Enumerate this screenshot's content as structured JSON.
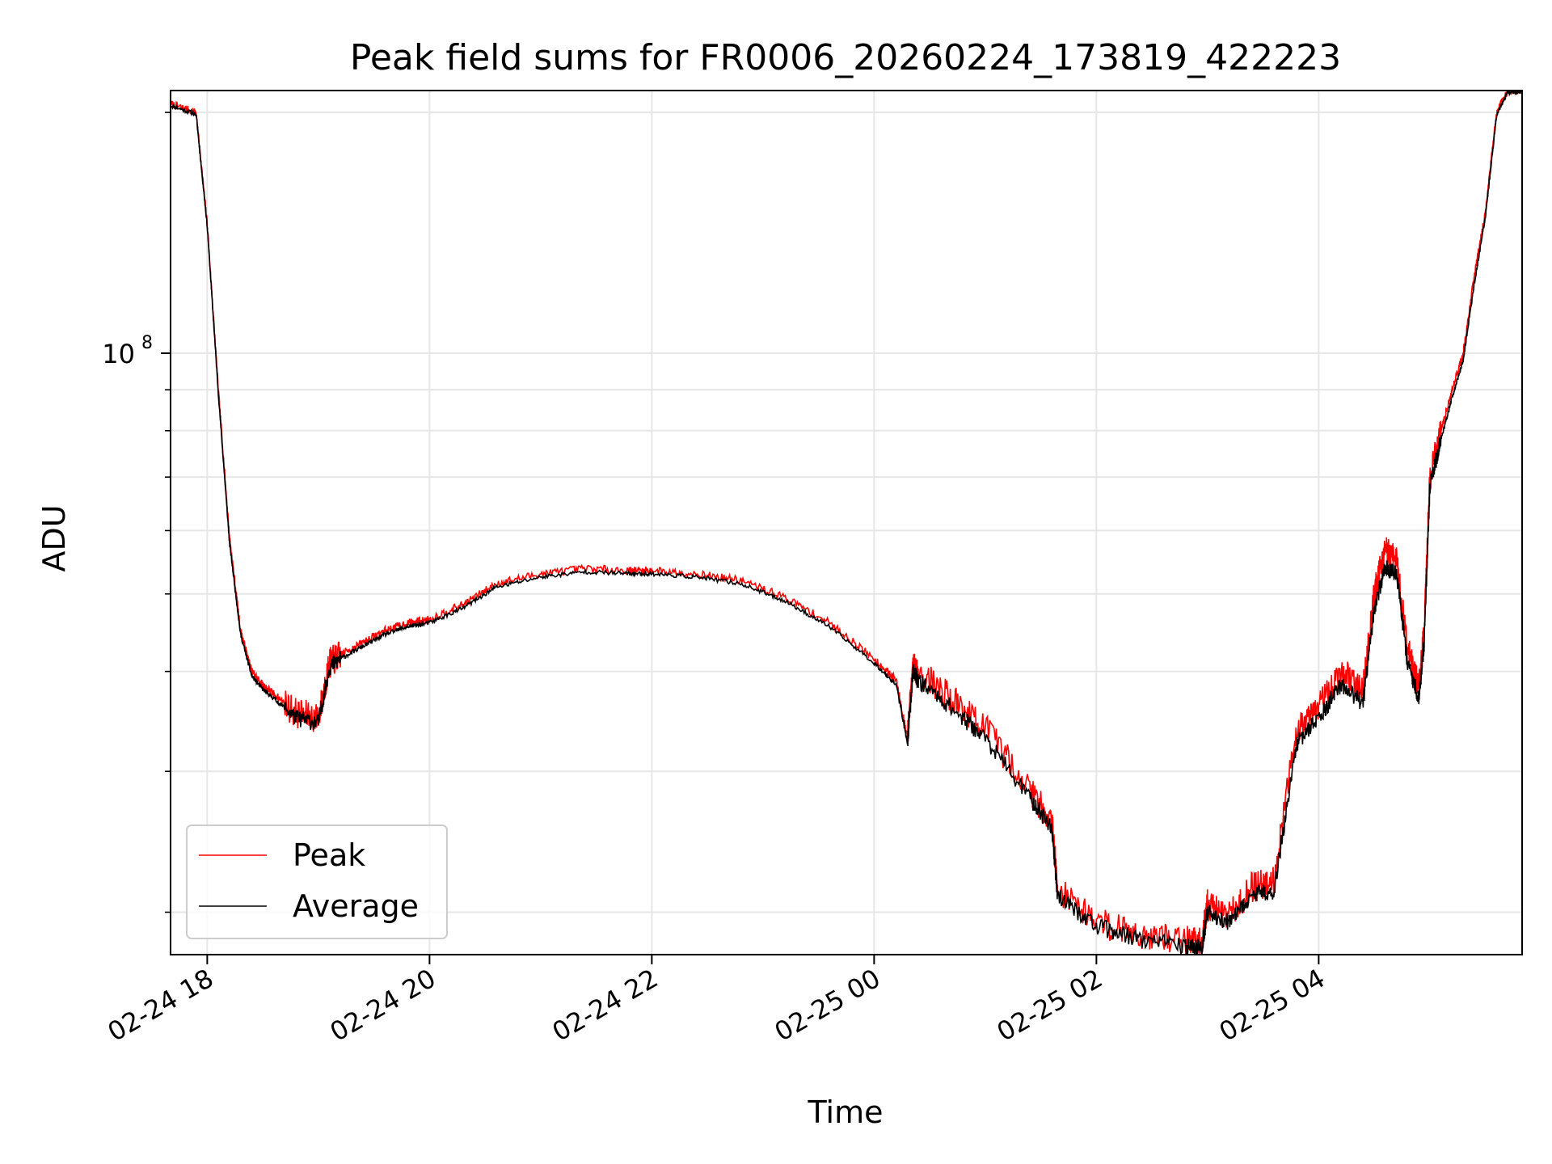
{
  "chart_data": {
    "type": "line",
    "title": "Peak field sums for FR0006_20260224_173819_422223",
    "xlabel": "Time",
    "ylabel": "ADU",
    "yscale": "log",
    "grid": true,
    "legend_position": "lower-left",
    "x_unit": "hours since 2026-02-24 00:00",
    "xlim": [
      17.67,
      29.83
    ],
    "ylim": [
      17700000,
      213000000
    ],
    "x_ticks": [
      {
        "value": 18,
        "label": "02-24 18"
      },
      {
        "value": 20,
        "label": "02-24 20"
      },
      {
        "value": 22,
        "label": "02-24 22"
      },
      {
        "value": 24,
        "label": "02-25 00"
      },
      {
        "value": 26,
        "label": "02-25 02"
      },
      {
        "value": 28,
        "label": "02-25 04"
      }
    ],
    "y_ticks": [
      {
        "value": 100000000,
        "base": "10",
        "exp": "8"
      }
    ],
    "y_minor_ticks": [
      20000000,
      30000000,
      40000000,
      50000000,
      60000000,
      70000000,
      80000000,
      90000000,
      200000000
    ],
    "colors": {
      "peak": "#ff0000",
      "average": "#000000",
      "grid": "#e6e6e6"
    },
    "series": [
      {
        "name": "Peak",
        "x": [
          17.67,
          17.9,
          18.0,
          18.1,
          18.2,
          18.3,
          18.4,
          18.5,
          18.6,
          18.8,
          19.0,
          19.1,
          19.2,
          19.4,
          19.6,
          19.8,
          20.0,
          20.3,
          20.6,
          21.0,
          21.4,
          21.8,
          22.0,
          22.4,
          22.8,
          23.2,
          23.6,
          24.0,
          24.2,
          24.3,
          24.35,
          24.4,
          24.7,
          25.0,
          25.4,
          25.6,
          25.65,
          26.0,
          26.4,
          26.8,
          26.95,
          27.0,
          27.2,
          27.4,
          27.6,
          27.8,
          28.0,
          28.2,
          28.4,
          28.5,
          28.6,
          28.7,
          28.8,
          28.9,
          28.95,
          29.0,
          29.1,
          29.2,
          29.3,
          29.4,
          29.5,
          29.6,
          29.7,
          29.83
        ],
        "y": [
          205000000,
          200000000,
          145000000,
          90000000,
          59000000,
          45000000,
          40000000,
          38500000,
          37500000,
          35500000,
          35000000,
          41000000,
          42000000,
          43500000,
          45000000,
          46000000,
          46500000,
          48500000,
          51500000,
          53000000,
          53800000,
          53500000,
          53500000,
          53000000,
          52000000,
          49500000,
          46000000,
          41500000,
          39000000,
          33000000,
          40500000,
          40000000,
          37000000,
          34000000,
          28500000,
          26000000,
          21500000,
          19500000,
          18800000,
          18400000,
          18400000,
          20500000,
          19800000,
          21500000,
          22000000,
          34000000,
          36000000,
          40000000,
          38000000,
          50000000,
          57000000,
          55000000,
          43000000,
          38000000,
          45000000,
          70000000,
          80000000,
          90000000,
          100000000,
          125000000,
          150000000,
          200000000,
          213000000,
          213000000
        ]
      },
      {
        "name": "Average",
        "x": [
          17.67,
          17.9,
          18.0,
          18.1,
          18.2,
          18.3,
          18.4,
          18.5,
          18.6,
          18.8,
          19.0,
          19.1,
          19.2,
          19.4,
          19.6,
          19.8,
          20.0,
          20.3,
          20.6,
          21.0,
          21.4,
          21.8,
          22.0,
          22.4,
          22.8,
          23.2,
          23.6,
          24.0,
          24.2,
          24.3,
          24.35,
          24.4,
          24.7,
          25.0,
          25.4,
          25.6,
          25.65,
          26.0,
          26.4,
          26.8,
          26.95,
          27.0,
          27.2,
          27.4,
          27.6,
          27.8,
          28.0,
          28.2,
          28.4,
          28.5,
          28.6,
          28.7,
          28.8,
          28.9,
          28.95,
          29.0,
          29.1,
          29.2,
          29.3,
          29.4,
          29.5,
          29.6,
          29.7,
          29.83
        ],
        "y": [
          204000000,
          199000000,
          144000000,
          89000000,
          58000000,
          44500000,
          39500000,
          38000000,
          37000000,
          35000000,
          34500000,
          40500000,
          41500000,
          43000000,
          44500000,
          45500000,
          46000000,
          48000000,
          51000000,
          52500000,
          53300000,
          53000000,
          53000000,
          52500000,
          51500000,
          49000000,
          45500000,
          41000000,
          38500000,
          32500000,
          40000000,
          39000000,
          36000000,
          33000000,
          27800000,
          25500000,
          21000000,
          19200000,
          18500000,
          18100000,
          18100000,
          20000000,
          19400000,
          21000000,
          21300000,
          32500000,
          35000000,
          38500000,
          36500000,
          48000000,
          54000000,
          53000000,
          41000000,
          37000000,
          43500000,
          68000000,
          78000000,
          88000000,
          98000000,
          122000000,
          148000000,
          198000000,
          212000000,
          212000000
        ]
      }
    ],
    "legend": [
      "Peak",
      "Average"
    ]
  }
}
